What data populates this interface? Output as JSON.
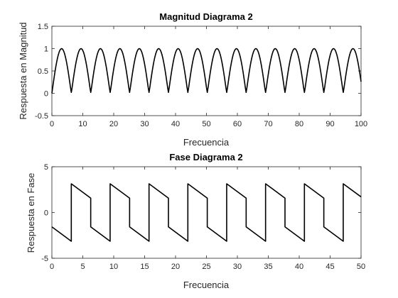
{
  "chart_data": [
    {
      "type": "line",
      "title": "Magnitud Diagrama 2",
      "xlabel": "Frecuencia",
      "ylabel": "Respuesta en Magnitud",
      "xlim": [
        0,
        100
      ],
      "ylim": [
        -0.5,
        1.5
      ],
      "xticks": [
        0,
        10,
        20,
        30,
        40,
        50,
        60,
        70,
        80,
        90,
        100
      ],
      "yticks": [
        -0.5,
        0,
        0.5,
        1,
        1.5
      ],
      "xtick_labels": [
        "0",
        "10",
        "20",
        "30",
        "40",
        "50",
        "60",
        "70",
        "80",
        "90",
        "100"
      ],
      "ytick_labels": [
        "-0.5",
        "0",
        "0.5",
        "1",
        "1.5"
      ],
      "grid": false,
      "line_color": "#000000",
      "series": [
        {
          "x": [
            0,
            1.57,
            3.14,
            4.71,
            6.28,
            7.85,
            9.42,
            11.0,
            12.57,
            14.14,
            15.71,
            17.28,
            18.85,
            20.42,
            21.99,
            23.56,
            25.13,
            26.7,
            28.27,
            29.85,
            31.42,
            32.99,
            34.56,
            36.13,
            37.7,
            39.27,
            40.84,
            42.41,
            43.98,
            45.55,
            47.12,
            48.69,
            50.27,
            51.84,
            53.41,
            54.98,
            56.55,
            58.12,
            59.69,
            61.26,
            62.83,
            64.4,
            65.97,
            67.54,
            69.12,
            70.69,
            72.26,
            73.83,
            75.4,
            76.97,
            78.54,
            80.11,
            81.68,
            83.25,
            84.82,
            86.39,
            87.96,
            89.54,
            91.11,
            92.68,
            94.25,
            95.82,
            97.39,
            98.96,
            100
          ],
          "y": [
            0,
            0.71,
            1.0,
            0.71,
            0.02,
            0.71,
            1.0,
            0.71,
            0.02,
            0.71,
            1.0,
            0.71,
            0.02,
            0.71,
            1.0,
            0.71,
            0.02,
            0.71,
            1.0,
            0.71,
            0.02,
            0.71,
            1.0,
            0.71,
            0.02,
            0.71,
            1.0,
            0.71,
            0.02,
            0.71,
            1.0,
            0.71,
            0.02,
            0.71,
            1.0,
            0.71,
            0.02,
            0.71,
            1.0,
            0.71,
            0.02,
            0.71,
            1.0,
            0.71,
            0.02,
            0.71,
            1.0,
            0.71,
            0.02,
            0.71,
            1.0,
            0.71,
            0.02,
            0.71,
            1.0,
            0.71,
            0.02,
            0.71,
            1.0,
            0.71,
            0.02,
            0.71,
            1.0,
            0.71,
            0.26
          ]
        }
      ]
    },
    {
      "type": "line",
      "title": "Fase Diagrama 2",
      "xlabel": "Frecuencia",
      "ylabel": "Respuesta en Fase",
      "xlim": [
        0,
        50
      ],
      "ylim": [
        -5,
        5
      ],
      "xticks": [
        0,
        5,
        10,
        15,
        20,
        25,
        30,
        35,
        40,
        45,
        50
      ],
      "yticks": [
        -5,
        0,
        5
      ],
      "xtick_labels": [
        "0",
        "5",
        "10",
        "15",
        "20",
        "25",
        "30",
        "35",
        "40",
        "45",
        "50"
      ],
      "ytick_labels": [
        "-5",
        "0",
        "5"
      ],
      "grid": false,
      "line_color": "#000000",
      "series": [
        {
          "x": [
            0,
            3.14,
            3.14,
            6.28,
            6.28,
            9.42,
            9.42,
            12.57,
            12.57,
            15.71,
            15.71,
            18.85,
            18.85,
            21.99,
            21.99,
            25.13,
            25.13,
            28.27,
            28.27,
            31.42,
            31.42,
            34.56,
            34.56,
            37.7,
            37.7,
            40.84,
            40.84,
            43.98,
            43.98,
            47.12,
            47.12,
            50
          ],
          "y": [
            -1.57,
            -3.14,
            3.14,
            1.57,
            -1.57,
            -3.14,
            3.14,
            1.57,
            -1.57,
            -3.14,
            3.14,
            1.57,
            -1.57,
            -3.14,
            3.14,
            1.57,
            -1.57,
            -3.14,
            3.14,
            1.57,
            -1.57,
            -3.14,
            3.14,
            1.57,
            -1.57,
            -3.14,
            3.14,
            1.57,
            -1.57,
            -3.14,
            3.14,
            1.71
          ]
        }
      ]
    }
  ]
}
